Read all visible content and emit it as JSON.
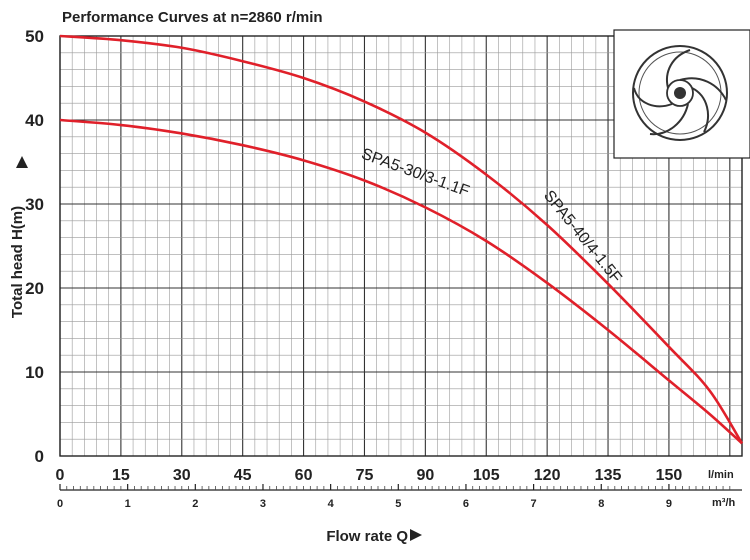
{
  "chart_data": {
    "type": "line",
    "title": "Performance Curves at n=2860 r/min",
    "ylabel": "Total head H(m)",
    "xlabel": "Flow rate Q",
    "x_unit": "l/min",
    "x2_unit": "m³/h",
    "xlim": [
      0,
      168
    ],
    "ylim": [
      0,
      50
    ],
    "x_ticks": [
      0,
      15,
      30,
      45,
      60,
      75,
      90,
      105,
      120,
      135,
      150
    ],
    "x2_ticks": [
      0,
      1,
      2,
      3,
      4,
      5,
      6,
      7,
      8,
      9
    ],
    "y_ticks": [
      0,
      10,
      20,
      30,
      40,
      50
    ],
    "grid": true,
    "series": [
      {
        "name": "SPA5-40/4-1.5F",
        "color": "#e0202a",
        "x": [
          0,
          15,
          30,
          45,
          60,
          75,
          90,
          105,
          120,
          135,
          150,
          160,
          168
        ],
        "y": [
          50,
          49.5,
          48.6,
          47,
          45,
          42.2,
          38.5,
          33.5,
          27.5,
          20.5,
          13,
          7.8,
          1.5
        ]
      },
      {
        "name": "SPA5-30/3-1.1F",
        "color": "#e0202a",
        "x": [
          0,
          15,
          30,
          45,
          60,
          75,
          90,
          105,
          120,
          135,
          150,
          160,
          168
        ],
        "y": [
          40,
          39.4,
          38.4,
          37,
          35.2,
          32.8,
          29.6,
          25.6,
          20.6,
          15,
          9,
          5,
          1.5
        ]
      }
    ]
  }
}
